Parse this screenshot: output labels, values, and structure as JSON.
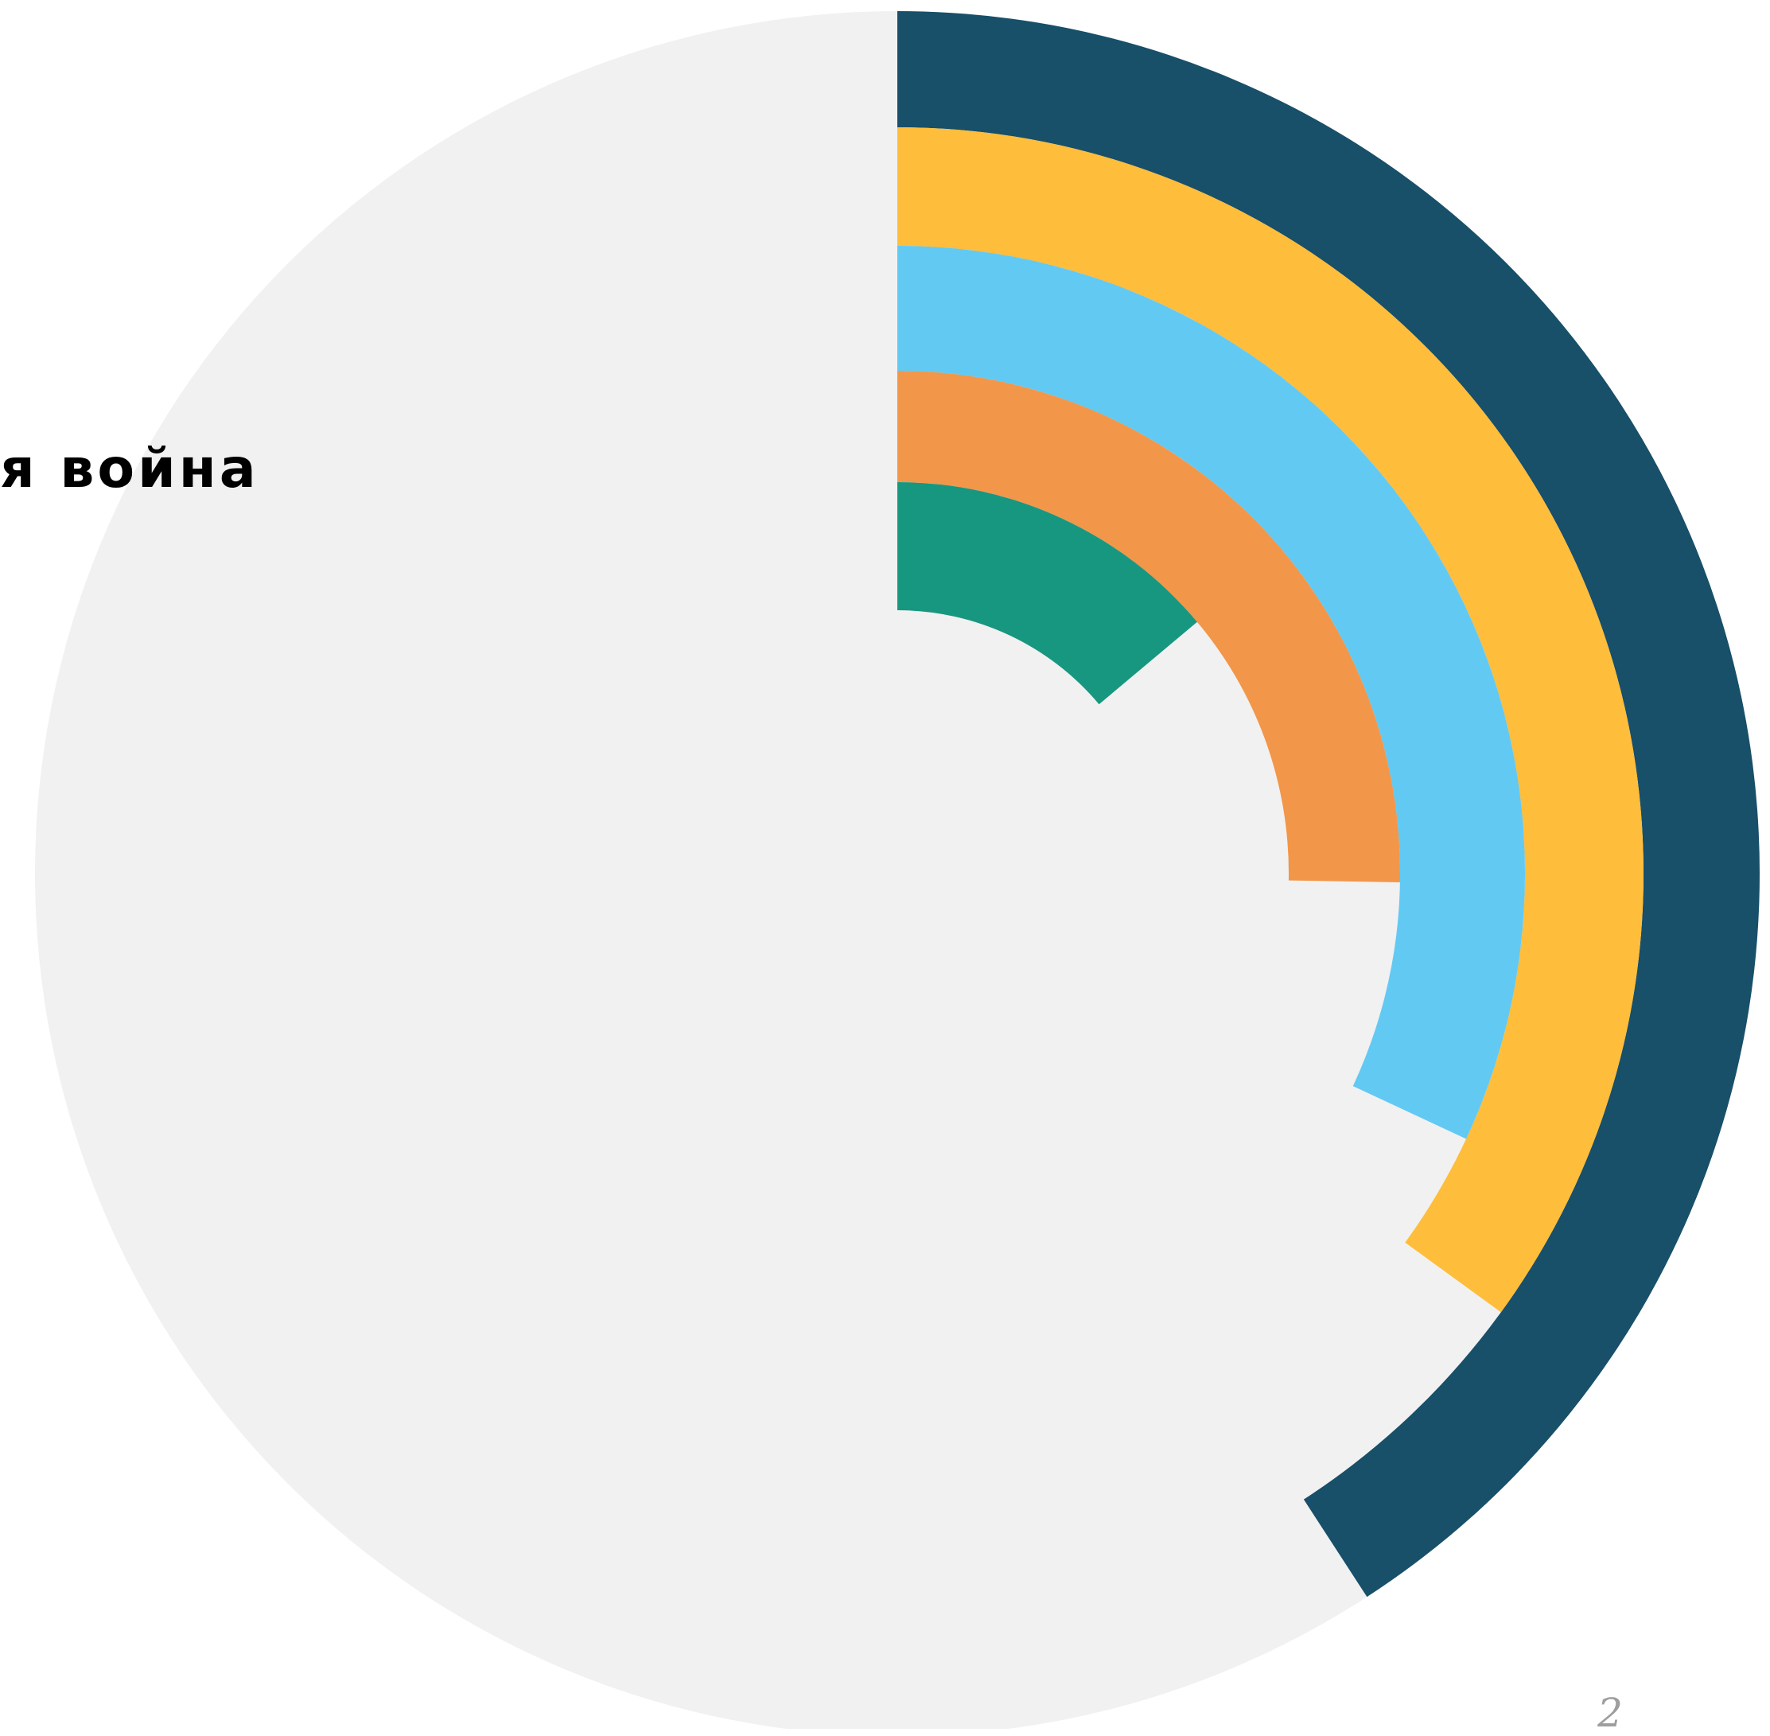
{
  "slide": {
    "title": "я война",
    "page_number": "2"
  },
  "chart_data": {
    "type": "radial-bar",
    "start_angle_deg": 0,
    "direction": "clockwise",
    "background_color": "#f1f1f1",
    "series": [
      {
        "color": "#184f69",
        "angle_deg": 147
      },
      {
        "color": "#febd3b",
        "angle_deg": 126
      },
      {
        "color": "#62c9f3",
        "angle_deg": 115
      },
      {
        "color": "#f2964a",
        "angle_deg": 91
      },
      {
        "color": "#17977f",
        "angle_deg": 50
      }
    ]
  }
}
